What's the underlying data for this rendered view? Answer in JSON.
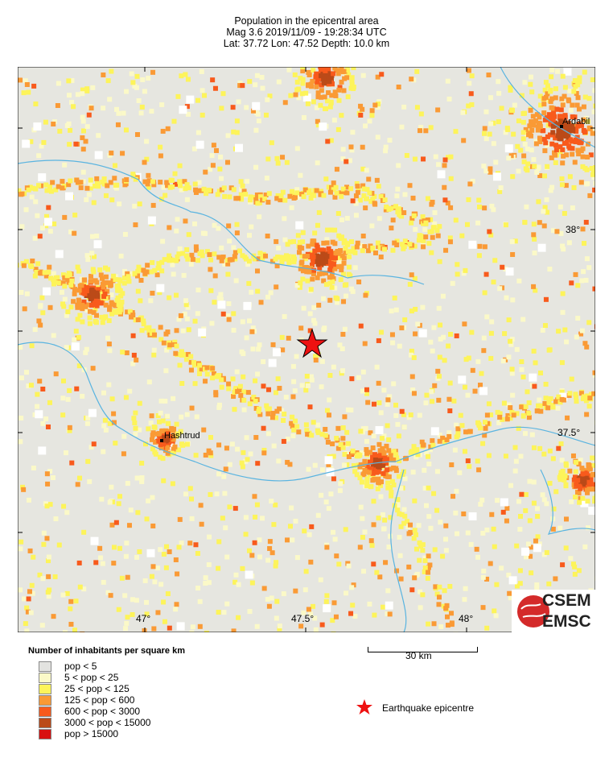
{
  "header": {
    "title": "Population in the epicentral area",
    "line2": "Mag 3.6  2019/11/09 - 19:28:34 UTC",
    "line3": "Lat: 37.72   Lon: 47.52     Depth:  10.0 km"
  },
  "map": {
    "lon_labels": [
      "47°",
      "47.5°",
      "48°"
    ],
    "lat_labels": [
      "38°",
      "37.5°"
    ],
    "places": [
      {
        "name": "Ardabil"
      },
      {
        "name": "Hashtrud"
      }
    ],
    "epicentre": {
      "lat": 37.72,
      "lon": 47.52,
      "color": "#ee1111"
    },
    "river_color": "#5ab4e0",
    "logo": {
      "top": "CSEM",
      "bottom": "EMSC",
      "color": "#d42a2a"
    }
  },
  "scale": {
    "label": "30 km"
  },
  "legend": {
    "title": "Number of inhabitants per square km",
    "items": [
      {
        "label": "pop < 5",
        "color": "#e3e3e0"
      },
      {
        "label": "5 < pop < 25",
        "color": "#fbf9c8"
      },
      {
        "label": "25 < pop < 125",
        "color": "#fdf45a"
      },
      {
        "label": "125 < pop < 600",
        "color": "#fa9a35"
      },
      {
        "label": "600 < pop < 3000",
        "color": "#f85a1c"
      },
      {
        "label": "3000 < pop < 15000",
        "color": "#bb4a18"
      },
      {
        "label": "pop > 15000",
        "color": "#d81010"
      }
    ],
    "epicentre_label": "Earthquake epicentre"
  }
}
